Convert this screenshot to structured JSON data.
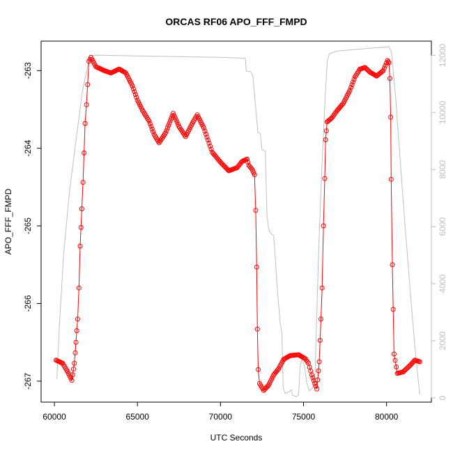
{
  "chart_data": {
    "type": "scatter",
    "title": "ORCAS RF06 APO_FFF_FMPD",
    "xlabel": "UTC Seconds",
    "ylabel": "APO_FFF_FMPD",
    "xlim": [
      59200,
      82700
    ],
    "ylim": [
      -267.27,
      -262.62
    ],
    "y2lim": [
      -150,
      12500
    ],
    "x_ticks": [
      60000,
      65000,
      70000,
      75000,
      80000
    ],
    "y_ticks": [
      -267,
      -266,
      -265,
      -264,
      -263
    ],
    "y2_ticks": [
      0,
      2000,
      4000,
      6000,
      8000,
      10000,
      12000
    ],
    "grid": false,
    "legend": "none",
    "colors": {
      "points": "#ff0000",
      "secondary": "#bebebe",
      "axis": "#000000"
    },
    "series": [
      {
        "style": "points-and-lines",
        "axis": "left",
        "keypoints": [
          [
            60100,
            -266.73
          ],
          [
            60500,
            -266.77
          ],
          [
            60800,
            -266.88
          ],
          [
            61050,
            -266.99
          ],
          [
            61200,
            -266.77
          ],
          [
            61300,
            -266.5
          ],
          [
            61400,
            -266.2
          ],
          [
            61480,
            -265.8
          ],
          [
            61550,
            -265.26
          ],
          [
            61650,
            -264.78
          ],
          [
            61720,
            -264.44
          ],
          [
            61850,
            -263.68
          ],
          [
            61930,
            -263.44
          ],
          [
            62000,
            -263.18
          ],
          [
            62080,
            -262.88
          ],
          [
            62200,
            -262.83
          ],
          [
            62500,
            -262.95
          ],
          [
            63000,
            -263.0
          ],
          [
            63400,
            -263.03
          ],
          [
            63900,
            -262.98
          ],
          [
            64300,
            -263.03
          ],
          [
            64700,
            -263.2
          ],
          [
            65000,
            -263.38
          ],
          [
            65300,
            -263.51
          ],
          [
            65700,
            -263.65
          ],
          [
            66000,
            -263.82
          ],
          [
            66300,
            -263.93
          ],
          [
            66700,
            -263.8
          ],
          [
            67150,
            -263.55
          ],
          [
            67500,
            -263.72
          ],
          [
            67900,
            -263.85
          ],
          [
            68300,
            -263.68
          ],
          [
            68600,
            -263.57
          ],
          [
            69000,
            -263.74
          ],
          [
            69500,
            -264.05
          ],
          [
            70000,
            -264.18
          ],
          [
            70500,
            -264.29
          ],
          [
            71000,
            -264.25
          ],
          [
            71300,
            -264.17
          ],
          [
            71600,
            -264.14
          ],
          [
            71700,
            -264.22
          ],
          [
            71900,
            -264.27
          ],
          [
            72050,
            -264.34
          ],
          [
            72120,
            -264.8
          ],
          [
            72180,
            -265.53
          ],
          [
            72220,
            -266.33
          ],
          [
            72270,
            -266.85
          ],
          [
            72350,
            -267.03
          ],
          [
            72600,
            -267.12
          ],
          [
            72900,
            -267.05
          ],
          [
            73200,
            -266.92
          ],
          [
            73500,
            -266.84
          ],
          [
            73800,
            -266.72
          ],
          [
            74200,
            -266.67
          ],
          [
            74700,
            -266.66
          ],
          [
            75100,
            -266.71
          ],
          [
            75300,
            -266.77
          ],
          [
            75500,
            -266.92
          ],
          [
            75800,
            -267.1
          ],
          [
            75950,
            -266.75
          ],
          [
            76050,
            -266.2
          ],
          [
            76120,
            -265.8
          ],
          [
            76200,
            -265.0
          ],
          [
            76280,
            -264.39
          ],
          [
            76330,
            -263.89
          ],
          [
            76420,
            -263.66
          ],
          [
            76700,
            -263.61
          ],
          [
            77000,
            -263.52
          ],
          [
            77400,
            -263.42
          ],
          [
            77800,
            -263.25
          ],
          [
            78100,
            -263.08
          ],
          [
            78400,
            -262.98
          ],
          [
            78700,
            -262.96
          ],
          [
            79000,
            -263.02
          ],
          [
            79400,
            -263.07
          ],
          [
            79800,
            -263.0
          ],
          [
            80050,
            -262.87
          ],
          [
            80150,
            -262.9
          ],
          [
            80200,
            -263.1
          ],
          [
            80250,
            -263.6
          ],
          [
            80280,
            -264.4
          ],
          [
            80350,
            -265.5
          ],
          [
            80450,
            -266.65
          ],
          [
            80650,
            -266.9
          ],
          [
            81000,
            -266.88
          ],
          [
            81400,
            -266.8
          ],
          [
            81700,
            -266.73
          ],
          [
            82000,
            -266.75
          ]
        ]
      },
      {
        "style": "line",
        "axis": "right",
        "keypoints": [
          [
            60150,
            650
          ],
          [
            60300,
            2500
          ],
          [
            60550,
            5000
          ],
          [
            60900,
            7200
          ],
          [
            61300,
            9000
          ],
          [
            61700,
            10800
          ],
          [
            62150,
            12000
          ],
          [
            62500,
            12010
          ],
          [
            65000,
            11980
          ],
          [
            68000,
            11950
          ],
          [
            70000,
            11930
          ],
          [
            71500,
            11900
          ],
          [
            71550,
            11450
          ],
          [
            71800,
            11430
          ],
          [
            71950,
            11300
          ],
          [
            72250,
            9300
          ],
          [
            72400,
            9250
          ],
          [
            72500,
            8700
          ],
          [
            72700,
            8650
          ],
          [
            72800,
            6400
          ],
          [
            72900,
            5900
          ],
          [
            73050,
            5750
          ],
          [
            73200,
            5700
          ],
          [
            73300,
            4900
          ],
          [
            73450,
            3600
          ],
          [
            73600,
            2600
          ],
          [
            73700,
            2300
          ],
          [
            73780,
            350
          ],
          [
            73900,
            150
          ],
          [
            74150,
            220
          ],
          [
            74250,
            280
          ],
          [
            74350,
            80
          ],
          [
            74600,
            50
          ],
          [
            74700,
            100
          ],
          [
            74800,
            1100
          ],
          [
            74900,
            1350
          ],
          [
            75050,
            1150
          ],
          [
            75200,
            500
          ],
          [
            75350,
            250
          ],
          [
            75550,
            350
          ],
          [
            75700,
            900
          ],
          [
            75900,
            5000
          ],
          [
            76100,
            8000
          ],
          [
            76300,
            10500
          ],
          [
            76430,
            11800
          ],
          [
            76550,
            12050
          ],
          [
            77000,
            12150
          ],
          [
            79000,
            12250
          ],
          [
            80150,
            12300
          ],
          [
            80300,
            12100
          ],
          [
            80550,
            10500
          ],
          [
            81000,
            6900
          ],
          [
            81350,
            4300
          ],
          [
            81700,
            1800
          ],
          [
            82000,
            120
          ]
        ]
      }
    ]
  }
}
